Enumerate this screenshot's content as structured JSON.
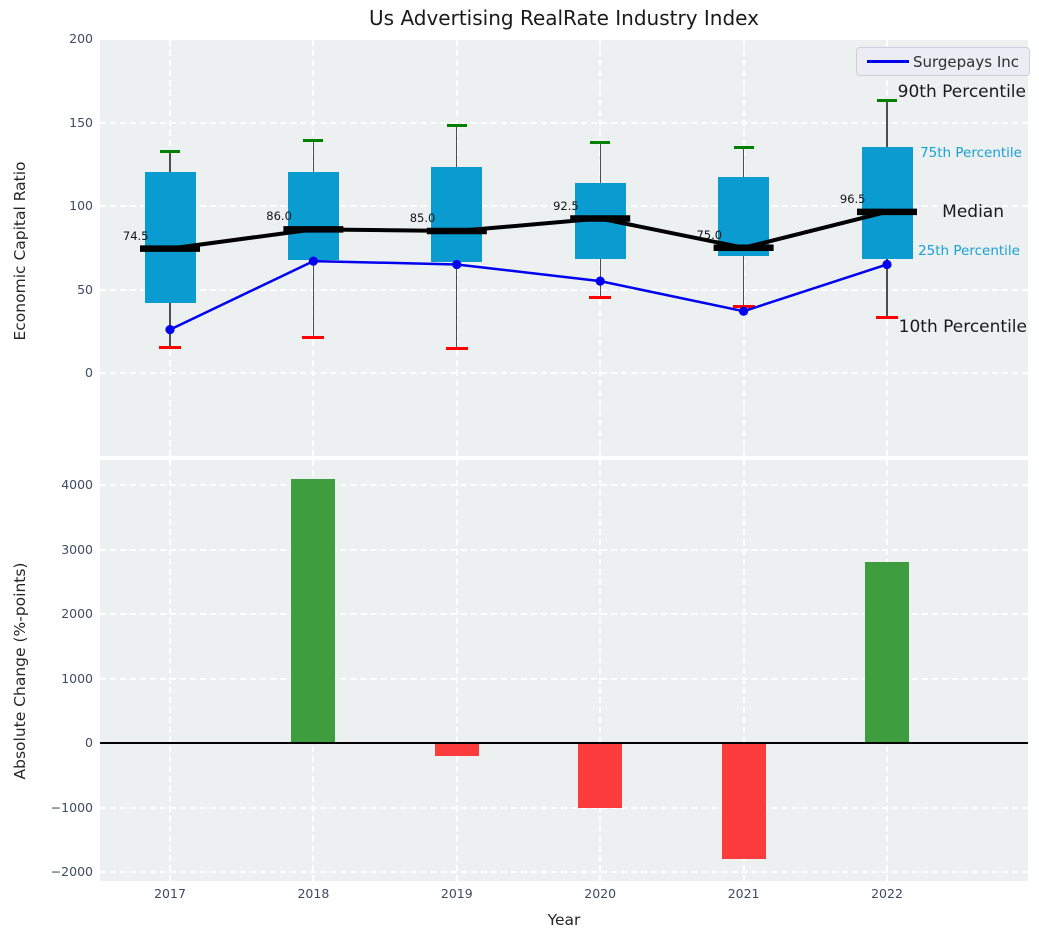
{
  "title": "Us Advertising RealRate Industry Index",
  "legend": {
    "label": "Surgepays Inc"
  },
  "side_labels": {
    "p90": "90th Percentile",
    "p75": "75th Percentile",
    "median": "Median",
    "p25": "25th Percentile",
    "p10": "10th Percentile"
  },
  "top_axis": {
    "ylabel": "Economic Capital Ratio",
    "yticks": [
      {
        "v": 200,
        "label": "200"
      },
      {
        "v": 150,
        "label": "150"
      },
      {
        "v": 100,
        "label": "100"
      },
      {
        "v": 50,
        "label": "50"
      },
      {
        "v": 0,
        "label": "0"
      }
    ]
  },
  "bottom_axis": {
    "ylabel": "Absolute Change (%-points)",
    "xlabel": "Year",
    "yticks": [
      {
        "v": 4000,
        "label": "4000"
      },
      {
        "v": 3000,
        "label": "3000"
      },
      {
        "v": 2000,
        "label": "2000"
      },
      {
        "v": 1000,
        "label": "1000"
      },
      {
        "v": 0,
        "label": "0"
      },
      {
        "v": -1000,
        "label": "−1000"
      },
      {
        "v": -2000,
        "label": "−2000"
      }
    ]
  },
  "colors": {
    "box_fill": "#0a9bd0",
    "cap_90th": "#008000",
    "cap_10th": "#ff0000",
    "median": "#000000",
    "company_line": "#0000f0",
    "bar_positive": "#3e9d3e",
    "bar_negative": "#fc3c3c",
    "axes_bg": "#ecf0f1"
  },
  "chart_data": [
    {
      "type": "boxplot-line",
      "title": "Us Advertising RealRate Industry Index",
      "ylabel": "Economic Capital Ratio",
      "categories": [
        2017,
        2018,
        2019,
        2020,
        2021,
        2022
      ],
      "ylim": [
        -52,
        201
      ],
      "grid": true,
      "legend_position": "upper right",
      "percentiles": {
        "p10": [
          15,
          21.5,
          14.5,
          45,
          40,
          33.5
        ],
        "p25": [
          42,
          67.5,
          66.5,
          68,
          70,
          68.5
        ],
        "median": [
          74.5,
          86.0,
          85.0,
          92.5,
          75.0,
          96.5
        ],
        "p75": [
          120.5,
          120.5,
          123.5,
          114,
          117.5,
          135.5
        ],
        "p90": [
          132.5,
          139,
          148,
          138,
          135,
          163
        ]
      },
      "median_labels": [
        "74.5",
        "86.0",
        "85.0",
        "92.5",
        "75.0",
        "96.5"
      ],
      "series": [
        {
          "name": "Surgepays Inc",
          "type": "line",
          "values": [
            26,
            67,
            65,
            55,
            37,
            65
          ]
        }
      ]
    },
    {
      "type": "bar",
      "ylabel": "Absolute Change (%-points)",
      "xlabel": "Year",
      "categories": [
        2018,
        2019,
        2020,
        2021,
        2022
      ],
      "values": [
        4100,
        -200,
        -1000,
        -1800,
        2800
      ],
      "ylim": [
        -2130,
        4390
      ],
      "grid": true
    }
  ]
}
